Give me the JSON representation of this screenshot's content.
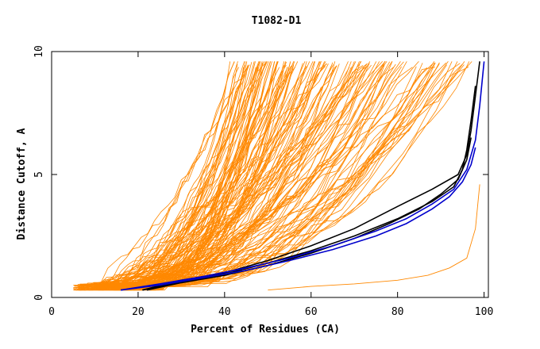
{
  "chart_data": {
    "type": "line",
    "title": "T1082-D1",
    "xlabel": "Percent of Residues (CA)",
    "ylabel": "Distance Cutoff, A",
    "xlim": [
      0,
      101
    ],
    "ylim": [
      0,
      10
    ],
    "xticks": [
      0,
      20,
      40,
      60,
      80,
      100
    ],
    "yticks": [
      0,
      5,
      10
    ],
    "grid": false,
    "colors": {
      "background_models": "#ff8800",
      "highlight_black": "#000000",
      "highlight_blue": "#0000cc"
    },
    "background_models_count": 150,
    "series": [
      {
        "color": "#000000",
        "x": [
          21,
          30,
          40,
          50,
          60,
          70,
          80,
          88,
          94,
          96,
          97,
          98,
          99
        ],
        "y": [
          0.3,
          0.7,
          1.0,
          1.5,
          2.1,
          2.8,
          3.7,
          4.4,
          5.0,
          5.8,
          6.8,
          8.2,
          9.6
        ]
      },
      {
        "color": "#000000",
        "x": [
          21,
          30,
          40,
          50,
          60,
          70,
          80,
          88,
          93,
          95,
          96,
          97,
          98
        ],
        "y": [
          0.3,
          0.65,
          0.95,
          1.4,
          1.9,
          2.5,
          3.2,
          3.9,
          4.5,
          5.2,
          6.0,
          7.2,
          8.6
        ]
      },
      {
        "color": "#000000",
        "x": [
          22,
          30,
          40,
          50,
          60,
          70,
          78,
          85,
          90,
          94,
          96,
          97
        ],
        "y": [
          0.3,
          0.6,
          0.9,
          1.3,
          1.8,
          2.4,
          3.0,
          3.6,
          4.2,
          4.8,
          5.6,
          6.5
        ]
      },
      {
        "color": "#0000cc",
        "x": [
          16,
          25,
          35,
          45,
          55,
          65,
          75,
          82,
          88,
          93,
          96,
          98,
          99,
          100
        ],
        "y": [
          0.3,
          0.55,
          0.85,
          1.2,
          1.6,
          2.1,
          2.7,
          3.2,
          3.8,
          4.4,
          5.2,
          6.4,
          7.8,
          9.6
        ]
      },
      {
        "color": "#0000cc",
        "x": [
          16,
          25,
          35,
          45,
          55,
          65,
          75,
          82,
          88,
          92,
          95,
          97,
          98
        ],
        "y": [
          0.3,
          0.5,
          0.8,
          1.1,
          1.5,
          1.95,
          2.5,
          3.0,
          3.6,
          4.1,
          4.7,
          5.4,
          6.1
        ]
      },
      {
        "color": "#ff8800",
        "x": [
          50,
          60,
          70,
          80,
          87,
          92,
          96,
          98,
          99
        ],
        "y": [
          0.3,
          0.45,
          0.55,
          0.7,
          0.9,
          1.2,
          1.6,
          2.8,
          4.6
        ]
      }
    ]
  }
}
